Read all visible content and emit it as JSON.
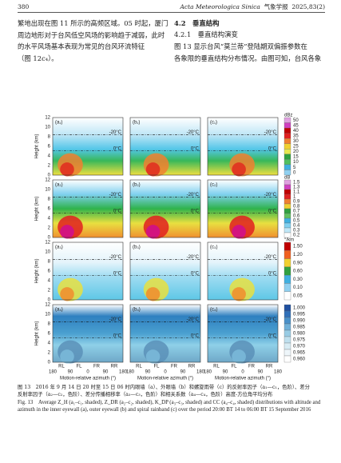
{
  "header": {
    "page": "380",
    "journal": "Acta Meteorologica Sinica",
    "journal_cn": "气象学报",
    "issue": "2025,83(2)"
  },
  "left_text": [
    "繁地出现在图 11 所示的高频区域。05 时起，厦门",
    "周边地形对于台风低空风场的影响趋于减弱，此时",
    "的水平风场基本表现为常见的台风环流特征",
    "（图 12c₄）。"
  ],
  "section": {
    "heading": "4.2　垂直结构",
    "subheading": "4.2.1　垂直结构演变",
    "lines": [
      "图 13 显示台风“莫兰蒂”登陆期双偏振参数在",
      "各象限的垂直结构分布情况。由图可知，台风各象"
    ]
  },
  "figure": {
    "panels": [
      [
        "(a₁)",
        "(b₁)",
        "(c₁)"
      ],
      [
        "(a₂)",
        "(b₂)",
        "(c₂)"
      ],
      [
        "(a₃)",
        "(b₃)",
        "(c₃)"
      ],
      [
        "(a₄)",
        "(b₄)",
        "(c₄)"
      ]
    ],
    "isotherms": [
      "-20°C",
      "0°C"
    ],
    "y_label": "Height (km)",
    "y_ticks": [
      "12",
      "10",
      "8",
      "6",
      "4",
      "2",
      "0"
    ],
    "x_ticks": [
      "180",
      "90",
      "0",
      "90",
      "180"
    ],
    "quadrants": [
      "RL",
      "FL",
      "FR",
      "RR"
    ],
    "x_label": "Motion-relative azimuth (°)",
    "colorbars": [
      {
        "unit": "dBz",
        "ticks": [
          "50",
          "45",
          "40",
          "35",
          "30",
          "25",
          "20",
          "15",
          "10",
          "5",
          "0"
        ]
      },
      {
        "unit": "dB",
        "ticks": [
          "1.5",
          "1.3",
          "1.1",
          "1",
          "0.9",
          "0.8",
          "0.7",
          "0.6",
          "0.5",
          "0.4",
          "0.3",
          "0.2"
        ]
      },
      {
        "unit": "°/km",
        "ticks": [
          "1.50",
          "1.20",
          "0.90",
          "0.60",
          "0.30",
          "0.10",
          "0.05"
        ]
      },
      {
        "ticks": [
          "1.000",
          "0.995",
          "0.990",
          "0.985",
          "0.980",
          "0.975",
          "0.970",
          "0.965",
          "0.960"
        ]
      }
    ]
  },
  "caption": {
    "cn": [
      "图 13　2016 年 9 月 14 日 20 时至 15 日 06 时内眼墙（a）、外眼墙（b）和螺旋雨带（c）的反射率因子（a₁—c₁，色阶）、差分",
      "反射率因子（a₂—c₂，色阶）、差分传播相移率（a₃—c₃，色阶）和相关系数（a₄—c₄，色阶）高度-方位角平均分布"
    ],
    "en": "Fig. 13　Average Z_H (a₁–c₁, shaded), Z_DR (a₂–c₂, shaded), K_DP (a₃–c₃, shaded) and CC (a₄–c₄, shaded) distributions with altitude and azimuth in the inner eyewall (a), outer eyewall (b) and spiral rainband (c) over the period 20:00 BT 14 to 06:00 BT 15 September 2016"
  }
}
